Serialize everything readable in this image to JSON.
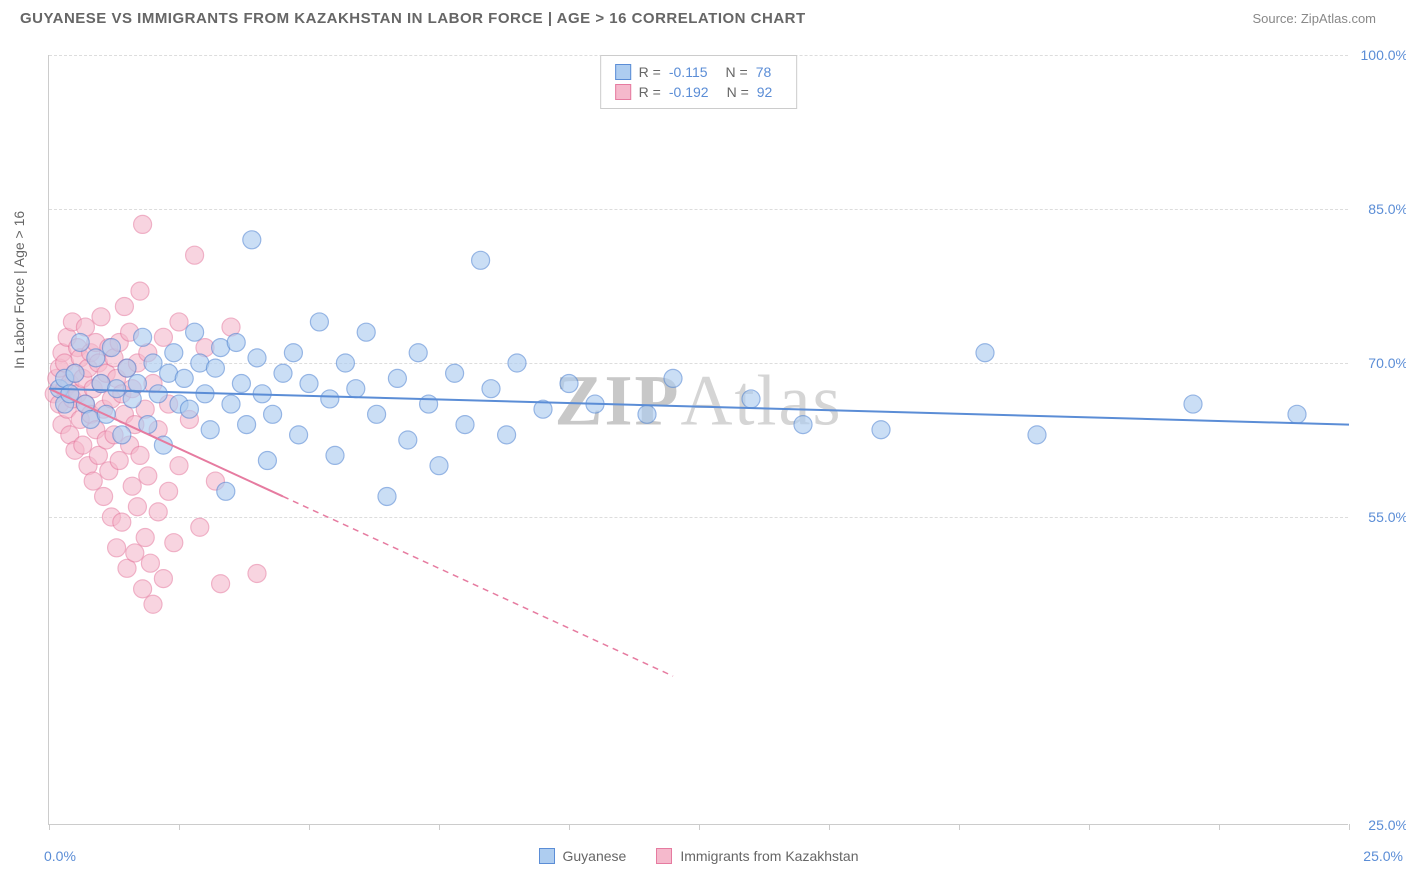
{
  "title": "GUYANESE VS IMMIGRANTS FROM KAZAKHSTAN IN LABOR FORCE | AGE > 16 CORRELATION CHART",
  "source": "Source: ZipAtlas.com",
  "ylabel": "In Labor Force | Age > 16",
  "watermark_bold": "ZIP",
  "watermark_rest": "Atlas",
  "chart": {
    "type": "scatter",
    "xlim": [
      0,
      25
    ],
    "ylim": [
      25,
      100
    ],
    "ytick_labels": [
      "100.0%",
      "85.0%",
      "70.0%",
      "55.0%",
      "25.0%"
    ],
    "ytick_values": [
      100,
      85,
      70,
      55,
      25
    ],
    "xtick_left": "0.0%",
    "xtick_right": "25.0%",
    "xtick_positions": [
      0,
      2.5,
      5,
      7.5,
      10,
      12.5,
      15,
      17.5,
      20,
      22.5,
      25
    ],
    "grid_color": "#dddddd",
    "axis_color": "#cccccc",
    "background_color": "#ffffff",
    "tick_label_color": "#5b8dd6"
  },
  "legend_top": [
    {
      "swatch_fill": "#aecdf0",
      "swatch_stroke": "#5b8dd6",
      "r_label": "R  =",
      "r_value": "-0.115",
      "n_label": "N  =",
      "n_value": "78"
    },
    {
      "swatch_fill": "#f5b9cc",
      "swatch_stroke": "#e67ba0",
      "r_label": "R  =",
      "r_value": "-0.192",
      "n_label": "N  =",
      "n_value": "92"
    }
  ],
  "legend_bottom": [
    {
      "swatch_fill": "#aecdf0",
      "swatch_stroke": "#5b8dd6",
      "label": "Guyanese"
    },
    {
      "swatch_fill": "#f5b9cc",
      "swatch_stroke": "#e67ba0",
      "label": "Immigrants from Kazakhstan"
    }
  ],
  "series": {
    "blue": {
      "color_fill": "#aecdf0",
      "color_stroke": "#5b8dd6",
      "opacity": 0.65,
      "marker_radius": 9,
      "trend": {
        "x1": 0,
        "y1": 67.5,
        "x2": 25,
        "y2": 64.0,
        "width": 2
      },
      "points": [
        [
          0.2,
          67.5
        ],
        [
          0.3,
          66.0
        ],
        [
          0.3,
          68.5
        ],
        [
          0.4,
          67.0
        ],
        [
          0.5,
          69.0
        ],
        [
          0.6,
          72.0
        ],
        [
          0.7,
          66.0
        ],
        [
          0.8,
          64.5
        ],
        [
          0.9,
          70.5
        ],
        [
          1.0,
          68.0
        ],
        [
          1.1,
          65.0
        ],
        [
          1.2,
          71.5
        ],
        [
          1.3,
          67.5
        ],
        [
          1.4,
          63.0
        ],
        [
          1.5,
          69.5
        ],
        [
          1.6,
          66.5
        ],
        [
          1.7,
          68.0
        ],
        [
          1.8,
          72.5
        ],
        [
          1.9,
          64.0
        ],
        [
          2.0,
          70.0
        ],
        [
          2.1,
          67.0
        ],
        [
          2.2,
          62.0
        ],
        [
          2.3,
          69.0
        ],
        [
          2.4,
          71.0
        ],
        [
          2.5,
          66.0
        ],
        [
          2.6,
          68.5
        ],
        [
          2.7,
          65.5
        ],
        [
          2.8,
          73.0
        ],
        [
          2.9,
          70.0
        ],
        [
          3.0,
          67.0
        ],
        [
          3.1,
          63.5
        ],
        [
          3.2,
          69.5
        ],
        [
          3.3,
          71.5
        ],
        [
          3.4,
          57.5
        ],
        [
          3.5,
          66.0
        ],
        [
          3.6,
          72.0
        ],
        [
          3.7,
          68.0
        ],
        [
          3.8,
          64.0
        ],
        [
          3.9,
          82.0
        ],
        [
          4.0,
          70.5
        ],
        [
          4.1,
          67.0
        ],
        [
          4.2,
          60.5
        ],
        [
          4.3,
          65.0
        ],
        [
          4.5,
          69.0
        ],
        [
          4.7,
          71.0
        ],
        [
          4.8,
          63.0
        ],
        [
          5.0,
          68.0
        ],
        [
          5.2,
          74.0
        ],
        [
          5.4,
          66.5
        ],
        [
          5.5,
          61.0
        ],
        [
          5.7,
          70.0
        ],
        [
          5.9,
          67.5
        ],
        [
          6.1,
          73.0
        ],
        [
          6.3,
          65.0
        ],
        [
          6.5,
          57.0
        ],
        [
          6.7,
          68.5
        ],
        [
          6.9,
          62.5
        ],
        [
          7.1,
          71.0
        ],
        [
          7.3,
          66.0
        ],
        [
          7.5,
          60.0
        ],
        [
          7.8,
          69.0
        ],
        [
          8.0,
          64.0
        ],
        [
          8.3,
          80.0
        ],
        [
          8.5,
          67.5
        ],
        [
          8.8,
          63.0
        ],
        [
          9.0,
          70.0
        ],
        [
          9.5,
          65.5
        ],
        [
          10.0,
          68.0
        ],
        [
          10.5,
          66.0
        ],
        [
          11.5,
          65.0
        ],
        [
          12.0,
          68.5
        ],
        [
          13.5,
          66.5
        ],
        [
          14.5,
          64.0
        ],
        [
          16.0,
          63.5
        ],
        [
          18.0,
          71.0
        ],
        [
          19.0,
          63.0
        ],
        [
          22.0,
          66.0
        ],
        [
          24.0,
          65.0
        ]
      ]
    },
    "pink": {
      "color_fill": "#f5b9cc",
      "color_stroke": "#e67ba0",
      "opacity": 0.6,
      "marker_radius": 9,
      "trend_solid": {
        "x1": 0,
        "y1": 67.5,
        "x2": 4.5,
        "y2": 57.0,
        "width": 2
      },
      "trend_dashed": {
        "x1": 4.5,
        "y1": 57.0,
        "x2": 12.0,
        "y2": 39.5,
        "width": 1.5,
        "dash": "6,5"
      },
      "points": [
        [
          0.1,
          67.0
        ],
        [
          0.15,
          68.5
        ],
        [
          0.2,
          66.0
        ],
        [
          0.2,
          69.5
        ],
        [
          0.25,
          71.0
        ],
        [
          0.25,
          64.0
        ],
        [
          0.3,
          67.5
        ],
        [
          0.3,
          70.0
        ],
        [
          0.35,
          65.5
        ],
        [
          0.35,
          72.5
        ],
        [
          0.4,
          68.0
        ],
        [
          0.4,
          63.0
        ],
        [
          0.45,
          66.5
        ],
        [
          0.45,
          74.0
        ],
        [
          0.5,
          69.0
        ],
        [
          0.5,
          61.5
        ],
        [
          0.55,
          67.0
        ],
        [
          0.55,
          71.5
        ],
        [
          0.6,
          64.5
        ],
        [
          0.6,
          70.5
        ],
        [
          0.65,
          68.5
        ],
        [
          0.65,
          62.0
        ],
        [
          0.7,
          73.5
        ],
        [
          0.7,
          66.0
        ],
        [
          0.75,
          69.5
        ],
        [
          0.75,
          60.0
        ],
        [
          0.8,
          71.0
        ],
        [
          0.8,
          65.0
        ],
        [
          0.85,
          67.5
        ],
        [
          0.85,
          58.5
        ],
        [
          0.9,
          72.0
        ],
        [
          0.9,
          63.5
        ],
        [
          0.95,
          70.0
        ],
        [
          0.95,
          61.0
        ],
        [
          1.0,
          68.0
        ],
        [
          1.0,
          74.5
        ],
        [
          1.05,
          65.5
        ],
        [
          1.05,
          57.0
        ],
        [
          1.1,
          69.0
        ],
        [
          1.1,
          62.5
        ],
        [
          1.15,
          71.5
        ],
        [
          1.15,
          59.5
        ],
        [
          1.2,
          66.5
        ],
        [
          1.2,
          55.0
        ],
        [
          1.25,
          70.5
        ],
        [
          1.25,
          63.0
        ],
        [
          1.3,
          68.5
        ],
        [
          1.3,
          52.0
        ],
        [
          1.35,
          72.0
        ],
        [
          1.35,
          60.5
        ],
        [
          1.4,
          67.0
        ],
        [
          1.4,
          54.5
        ],
        [
          1.45,
          65.0
        ],
        [
          1.45,
          75.5
        ],
        [
          1.5,
          50.0
        ],
        [
          1.5,
          69.5
        ],
        [
          1.55,
          62.0
        ],
        [
          1.55,
          73.0
        ],
        [
          1.6,
          58.0
        ],
        [
          1.6,
          67.5
        ],
        [
          1.65,
          64.0
        ],
        [
          1.65,
          51.5
        ],
        [
          1.7,
          70.0
        ],
        [
          1.7,
          56.0
        ],
        [
          1.75,
          77.0
        ],
        [
          1.75,
          61.0
        ],
        [
          1.8,
          83.5
        ],
        [
          1.8,
          48.0
        ],
        [
          1.85,
          65.5
        ],
        [
          1.85,
          53.0
        ],
        [
          1.9,
          59.0
        ],
        [
          1.9,
          71.0
        ],
        [
          1.95,
          50.5
        ],
        [
          2.0,
          68.0
        ],
        [
          2.0,
          46.5
        ],
        [
          2.1,
          63.5
        ],
        [
          2.1,
          55.5
        ],
        [
          2.2,
          72.5
        ],
        [
          2.2,
          49.0
        ],
        [
          2.3,
          66.0
        ],
        [
          2.3,
          57.5
        ],
        [
          2.4,
          52.5
        ],
        [
          2.5,
          74.0
        ],
        [
          2.5,
          60.0
        ],
        [
          2.7,
          64.5
        ],
        [
          2.8,
          80.5
        ],
        [
          2.9,
          54.0
        ],
        [
          3.0,
          71.5
        ],
        [
          3.2,
          58.5
        ],
        [
          3.3,
          48.5
        ],
        [
          3.5,
          73.5
        ],
        [
          4.0,
          49.5
        ]
      ]
    }
  }
}
